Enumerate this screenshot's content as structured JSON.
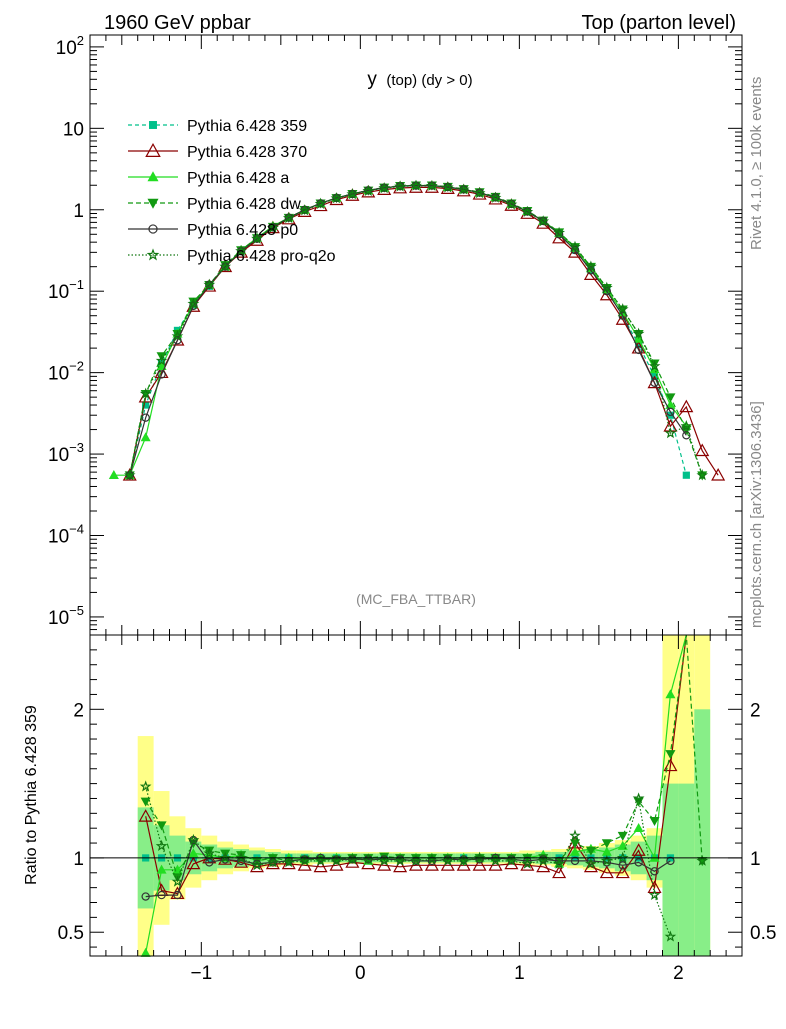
{
  "header": {
    "left_title": "1960 GeV ppbar",
    "right_title": "Top (parton level)"
  },
  "side_labels": {
    "rivet": "Rivet 4.1.0, ≥ 100k events",
    "mcplots": "mcplots.cern.ch [arXiv:1306.3436]"
  },
  "chart_data": [
    {
      "type": "line",
      "title": "y (top) (dy > 0)",
      "title_main": "y",
      "title_rest": "(top) (dy > 0)",
      "watermark": "(MC_FBA_TTBAR)",
      "xlabel": "",
      "ylabel": "",
      "yscale": "log",
      "xlim": [
        -1.7,
        2.4
      ],
      "ylim": [
        6e-06,
        140
      ],
      "y_ticks": [
        {
          "value": 1e-05,
          "base": "10",
          "exp": "−5"
        },
        {
          "value": 0.0001,
          "base": "10",
          "exp": "−4"
        },
        {
          "value": 0.001,
          "base": "10",
          "exp": "−3"
        },
        {
          "value": 0.01,
          "base": "10",
          "exp": "−2"
        },
        {
          "value": 0.1,
          "base": "10",
          "exp": "−1"
        },
        {
          "value": 1,
          "base": "1",
          "exp": ""
        },
        {
          "value": 10,
          "base": "10",
          "exp": ""
        },
        {
          "value": 100,
          "base": "10",
          "exp": "2"
        }
      ],
      "legend_position": "top-left",
      "x": [
        -1.55,
        -1.45,
        -1.35,
        -1.25,
        -1.15,
        -1.05,
        -0.95,
        -0.85,
        -0.75,
        -0.65,
        -0.55,
        -0.45,
        -0.35,
        -0.25,
        -0.15,
        -0.05,
        0.05,
        0.15,
        0.25,
        0.35,
        0.45,
        0.55,
        0.65,
        0.75,
        0.85,
        0.95,
        1.05,
        1.15,
        1.25,
        1.35,
        1.45,
        1.55,
        1.65,
        1.75,
        1.85,
        1.95,
        2.05,
        2.15,
        2.25
      ],
      "series": [
        {
          "name": "Pythia 6.428 359",
          "color": "#00c08a",
          "dash": "4,3",
          "marker": "square",
          "values": [
            null,
            0.00055,
            0.004,
            0.013,
            0.033,
            0.068,
            0.115,
            0.2,
            0.31,
            0.45,
            0.62,
            0.8,
            1.0,
            1.2,
            1.4,
            1.55,
            1.72,
            1.85,
            1.95,
            1.98,
            1.98,
            1.9,
            1.78,
            1.62,
            1.42,
            1.18,
            0.95,
            0.72,
            0.5,
            0.32,
            0.18,
            0.1,
            0.05,
            0.022,
            0.009,
            0.003,
            0.00055,
            null,
            null
          ]
        },
        {
          "name": "Pythia 6.428 370",
          "color": "#8b0000",
          "dash": "",
          "marker": "triangle-open",
          "values": [
            null,
            0.00055,
            0.005,
            0.01,
            0.025,
            0.065,
            0.115,
            0.2,
            0.3,
            0.42,
            0.6,
            0.77,
            0.95,
            1.12,
            1.33,
            1.5,
            1.65,
            1.77,
            1.85,
            1.88,
            1.88,
            1.82,
            1.7,
            1.55,
            1.35,
            1.13,
            0.9,
            0.68,
            0.45,
            0.3,
            0.16,
            0.09,
            0.045,
            0.02,
            0.0075,
            0.0022,
            0.0038,
            0.0011,
            0.00055
          ]
        },
        {
          "name": "Pythia 6.428 a",
          "color": "#22dd22",
          "dash": "",
          "marker": "triangle",
          "values": [
            0.00055,
            0.00055,
            0.0016,
            0.012,
            0.03,
            0.07,
            0.12,
            0.2,
            0.32,
            0.45,
            0.63,
            0.8,
            1.0,
            1.2,
            1.4,
            1.56,
            1.73,
            1.86,
            1.96,
            2.0,
            1.98,
            1.9,
            1.78,
            1.62,
            1.42,
            1.18,
            0.96,
            0.73,
            0.52,
            0.34,
            0.19,
            0.105,
            0.055,
            0.026,
            0.011,
            0.004,
            0.0022,
            null,
            null
          ]
        },
        {
          "name": "Pythia 6.428 dw",
          "color": "#119911",
          "dash": "5,3",
          "marker": "triangle-down",
          "values": [
            null,
            0.00055,
            0.0055,
            0.016,
            0.03,
            0.075,
            0.12,
            0.21,
            0.32,
            0.45,
            0.62,
            0.8,
            1.0,
            1.2,
            1.4,
            1.57,
            1.73,
            1.88,
            1.97,
            2.0,
            2.0,
            1.92,
            1.8,
            1.65,
            1.45,
            1.2,
            0.97,
            0.74,
            0.53,
            0.35,
            0.2,
            0.11,
            0.06,
            0.03,
            0.013,
            0.005,
            0.002,
            0.00055,
            null
          ]
        },
        {
          "name": "Pythia 6.428 p0",
          "color": "#333333",
          "dash": "",
          "marker": "circle-open",
          "values": [
            null,
            0.00055,
            0.0028,
            0.0095,
            0.025,
            0.066,
            0.12,
            0.2,
            0.31,
            0.44,
            0.61,
            0.8,
            1.0,
            1.2,
            1.4,
            1.56,
            1.73,
            1.86,
            1.95,
            1.98,
            1.98,
            1.9,
            1.78,
            1.62,
            1.42,
            1.18,
            0.95,
            0.73,
            0.5,
            0.32,
            0.18,
            0.1,
            0.05,
            0.019,
            0.0075,
            0.0033,
            0.0017,
            null,
            null
          ]
        },
        {
          "name": "Pythia 6.428 pro-q2o",
          "color": "#117711",
          "dash": "1.5,2",
          "marker": "star-open",
          "values": [
            null,
            0.00055,
            0.0055,
            0.014,
            0.028,
            0.07,
            0.12,
            0.2,
            0.31,
            0.44,
            0.6,
            0.79,
            0.98,
            1.18,
            1.38,
            1.55,
            1.7,
            1.84,
            1.93,
            1.97,
            1.96,
            1.88,
            1.77,
            1.6,
            1.4,
            1.16,
            0.94,
            0.72,
            0.52,
            0.35,
            0.2,
            0.11,
            0.06,
            0.03,
            0.012,
            0.0018,
            0.0022,
            0.00055,
            null
          ]
        }
      ]
    },
    {
      "type": "line",
      "title": "",
      "ylabel": "Ratio to Pythia 6.428 359",
      "xlim": [
        -1.7,
        2.4
      ],
      "ylim": [
        0.34,
        2.5
      ],
      "y_ticks": [
        0.5,
        1,
        2
      ],
      "y_tick_labels": [
        "0.5",
        "1",
        "2"
      ],
      "x_ticks": [
        -1,
        0,
        1,
        2
      ],
      "x_tick_labels": [
        "−1",
        "0",
        "1",
        "2"
      ],
      "reference_line": 1,
      "bands": {
        "x_edges": [
          -1.4,
          -1.3,
          -1.2,
          -1.1,
          -1.0,
          -0.9,
          -0.8,
          -0.7,
          -0.6,
          -0.5,
          -0.4,
          -0.3,
          -0.2,
          -0.1,
          0.0,
          0.1,
          0.2,
          0.3,
          0.4,
          0.5,
          0.6,
          0.7,
          0.8,
          0.9,
          1.0,
          1.1,
          1.2,
          1.3,
          1.4,
          1.5,
          1.6,
          1.7,
          1.8,
          1.9,
          2.0,
          2.1,
          2.2
        ],
        "yellow_low": [
          0.34,
          0.55,
          0.72,
          0.8,
          0.85,
          0.89,
          0.91,
          0.93,
          0.94,
          0.95,
          0.95,
          0.96,
          0.96,
          0.96,
          0.96,
          0.96,
          0.96,
          0.96,
          0.96,
          0.96,
          0.96,
          0.96,
          0.96,
          0.96,
          0.95,
          0.95,
          0.94,
          0.93,
          0.92,
          0.9,
          0.88,
          0.85,
          0.8,
          0.34,
          0.34,
          0.34
        ],
        "yellow_high": [
          1.82,
          1.45,
          1.28,
          1.2,
          1.15,
          1.11,
          1.09,
          1.07,
          1.06,
          1.05,
          1.05,
          1.04,
          1.04,
          1.04,
          1.04,
          1.04,
          1.04,
          1.04,
          1.04,
          1.04,
          1.04,
          1.04,
          1.04,
          1.04,
          1.05,
          1.05,
          1.06,
          1.07,
          1.08,
          1.1,
          1.12,
          1.15,
          1.2,
          2.5,
          2.5,
          2.5
        ],
        "green_low": [
          0.66,
          0.78,
          0.85,
          0.89,
          0.91,
          0.93,
          0.94,
          0.95,
          0.96,
          0.97,
          0.97,
          0.97,
          0.97,
          0.97,
          0.97,
          0.97,
          0.97,
          0.97,
          0.97,
          0.97,
          0.97,
          0.97,
          0.97,
          0.97,
          0.97,
          0.96,
          0.96,
          0.95,
          0.94,
          0.93,
          0.91,
          0.89,
          0.85,
          0.34,
          0.34,
          0.34
        ],
        "green_high": [
          1.34,
          1.22,
          1.15,
          1.11,
          1.09,
          1.07,
          1.06,
          1.05,
          1.04,
          1.03,
          1.03,
          1.03,
          1.03,
          1.03,
          1.03,
          1.03,
          1.03,
          1.03,
          1.03,
          1.03,
          1.03,
          1.03,
          1.03,
          1.03,
          1.03,
          1.04,
          1.04,
          1.05,
          1.06,
          1.07,
          1.09,
          1.11,
          1.15,
          1.5,
          1.5,
          2.0
        ]
      },
      "x": [
        -1.35,
        -1.25,
        -1.15,
        -1.05,
        -0.95,
        -0.85,
        -0.75,
        -0.65,
        -0.55,
        -0.45,
        -0.35,
        -0.25,
        -0.15,
        -0.05,
        0.05,
        0.15,
        0.25,
        0.35,
        0.45,
        0.55,
        0.65,
        0.75,
        0.85,
        0.95,
        1.05,
        1.15,
        1.25,
        1.35,
        1.45,
        1.55,
        1.65,
        1.75,
        1.85,
        1.95,
        2.05,
        2.15
      ],
      "series": [
        {
          "name": "Pythia 6.428 359",
          "color": "#00c08a",
          "dash": "4,3",
          "marker": "square",
          "values": [
            1,
            1,
            1,
            1,
            1,
            1,
            1,
            1,
            1,
            1,
            1,
            1,
            1,
            1,
            1,
            1,
            1,
            1,
            1,
            1,
            1,
            1,
            1,
            1,
            1,
            1,
            1,
            1,
            1,
            1,
            1,
            1,
            1,
            1,
            null,
            null
          ]
        },
        {
          "name": "Pythia 6.428 370",
          "color": "#8b0000",
          "dash": "",
          "marker": "triangle-open",
          "values": [
            1.28,
            0.78,
            0.76,
            0.96,
            1.0,
            0.99,
            0.97,
            0.94,
            0.96,
            0.96,
            0.95,
            0.94,
            0.95,
            0.97,
            0.96,
            0.95,
            0.94,
            0.95,
            0.95,
            0.95,
            0.95,
            0.95,
            0.95,
            0.96,
            0.95,
            0.94,
            0.9,
            1.1,
            0.94,
            0.9,
            0.9,
            1.05,
            0.8,
            1.62,
            2.7,
            null
          ]
        },
        {
          "name": "Pythia 6.428 a",
          "color": "#22dd22",
          "dash": "",
          "marker": "triangle",
          "values": [
            0.36,
            0.92,
            0.92,
            1.03,
            1.02,
            1.0,
            1.02,
            0.98,
            1.0,
            1.0,
            0.99,
            1.0,
            1.0,
            1.0,
            0.98,
            1.0,
            1.0,
            1.0,
            1.0,
            1.0,
            1.0,
            1.0,
            1.0,
            1.0,
            1.0,
            1.02,
            0.96,
            1.04,
            1.06,
            1.04,
            1.08,
            1.2,
            1.0,
            2.1,
            2.7,
            null
          ]
        },
        {
          "name": "Pythia 6.428 dw",
          "color": "#119911",
          "dash": "5,3",
          "marker": "triangle-down",
          "values": [
            1.38,
            1.22,
            0.87,
            1.1,
            1.05,
            1.03,
            1.02,
            0.98,
            1.0,
            0.98,
            0.99,
            0.99,
            0.99,
            1.0,
            1.0,
            1.01,
            1.0,
            1.0,
            1.0,
            1.0,
            0.98,
            1.0,
            1.0,
            1.0,
            1.0,
            1.0,
            0.98,
            1.1,
            1.05,
            1.1,
            1.15,
            1.38,
            1.25,
            1.7,
            2.7,
            0.98
          ]
        },
        {
          "name": "Pythia 6.428 p0",
          "color": "#333333",
          "dash": "",
          "marker": "circle-open",
          "values": [
            0.74,
            0.75,
            0.75,
            1.12,
            0.97,
            0.99,
            0.98,
            0.96,
            0.97,
            0.98,
            0.99,
            1.0,
            0.99,
            0.99,
            0.99,
            0.99,
            0.99,
            0.98,
            0.98,
            0.99,
            0.99,
            0.99,
            1.0,
            0.99,
            0.98,
            0.99,
            0.98,
            0.98,
            0.98,
            0.97,
            0.95,
            0.97,
            0.91,
            0.98,
            null,
            null
          ]
        },
        {
          "name": "Pythia 6.428 pro-q2o",
          "color": "#117711",
          "dash": "1.5,2",
          "marker": "star-open",
          "values": [
            1.48,
            1.08,
            0.84,
            1.12,
            1.03,
            1.0,
            1.0,
            0.95,
            0.97,
            0.97,
            0.98,
            0.98,
            0.98,
            0.99,
            0.99,
            0.98,
            0.98,
            0.98,
            0.99,
            0.98,
            0.98,
            1.0,
            0.98,
            0.98,
            0.96,
            0.98,
            0.96,
            1.15,
            0.96,
            0.98,
            1.0,
            1.4,
            0.75,
            0.47,
            null,
            0.98
          ]
        }
      ]
    }
  ]
}
